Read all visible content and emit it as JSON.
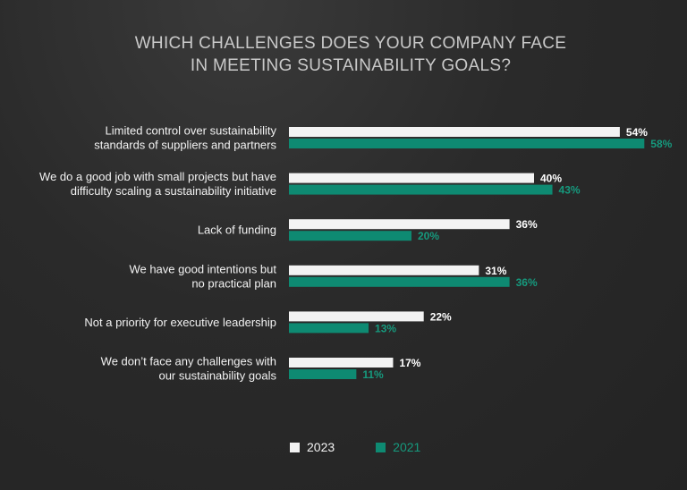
{
  "chart_data": {
    "type": "bar",
    "orientation": "horizontal",
    "title_lines": [
      "WHICH CHALLENGES DOES YOUR COMPANY FACE",
      "IN MEETING SUSTAINABILITY GOALS?"
    ],
    "categories": [
      [
        "Limited control over sustainability",
        "standards of suppliers and partners"
      ],
      [
        "We do a good job with small projects but have",
        "difficulty scaling a sustainability initiative"
      ],
      [
        "Lack of funding"
      ],
      [
        "We have good intentions but",
        "no practical plan"
      ],
      [
        "Not a priority for executive leadership"
      ],
      [
        "We don’t face any challenges with",
        "our sustainability goals"
      ]
    ],
    "series": [
      {
        "name": "2023",
        "values": [
          54,
          40,
          36,
          31,
          22,
          17
        ],
        "labels": [
          "54%",
          "40%",
          "36%",
          "31%",
          "22%",
          "17%"
        ],
        "color": "#f3f3f3",
        "label_color": "#ffffff"
      },
      {
        "name": "2021",
        "values": [
          58,
          43,
          20,
          36,
          13,
          11
        ],
        "labels": [
          "58%",
          "43%",
          "20%",
          "36%",
          "13%",
          "11%"
        ],
        "color": "#0e8a72",
        "label_color": "#16997d"
      }
    ],
    "xlim": [
      0,
      100
    ],
    "legend_position": "bottom"
  }
}
